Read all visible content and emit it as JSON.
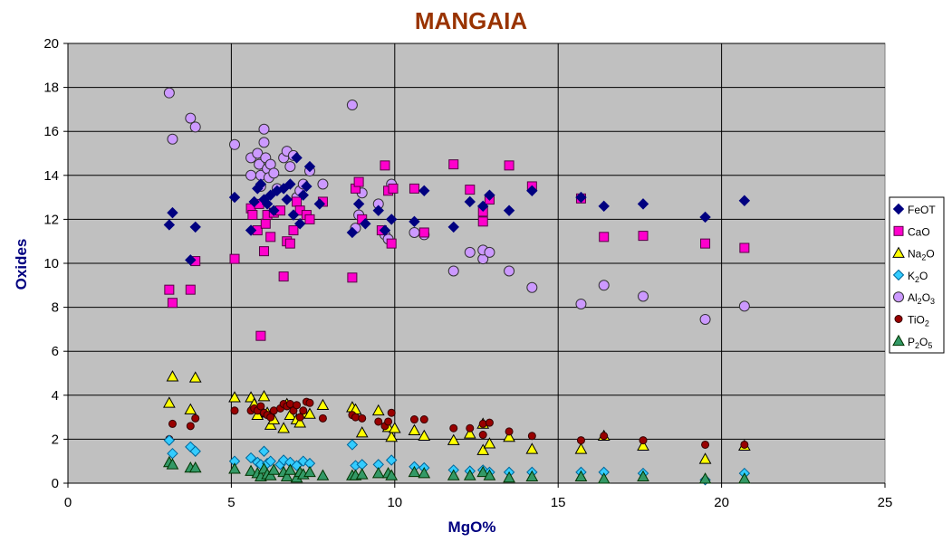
{
  "chart_data": {
    "type": "scatter",
    "title": "MANGAIA",
    "xlabel": "MgO%",
    "ylabel": "Oxides",
    "xlim": [
      0,
      25
    ],
    "ylim": [
      0,
      20
    ],
    "x_ticks": [
      "0",
      "5",
      "10",
      "15",
      "20",
      "25"
    ],
    "y_ticks": [
      "0",
      "2",
      "4",
      "6",
      "8",
      "10",
      "12",
      "14",
      "16",
      "18",
      "20"
    ],
    "grid": true,
    "legend_position": "right",
    "colors": {
      "title": "#993300",
      "axis_title": "#000080",
      "plot_background": "#c0c0c0"
    },
    "series": [
      {
        "name": "FeOT",
        "sub": "",
        "marker": "diamond",
        "fill": "#000080",
        "stroke": "#000080",
        "points": [
          [
            3.1,
            11.75
          ],
          [
            3.2,
            12.3
          ],
          [
            3.75,
            10.15
          ],
          [
            3.9,
            11.65
          ],
          [
            5.1,
            13.0
          ],
          [
            5.6,
            11.5
          ],
          [
            5.7,
            12.8
          ],
          [
            5.8,
            13.4
          ],
          [
            5.9,
            13.6
          ],
          [
            6.0,
            12.9
          ],
          [
            6.1,
            12.7
          ],
          [
            6.2,
            13.1
          ],
          [
            6.3,
            12.4
          ],
          [
            6.4,
            13.3
          ],
          [
            6.6,
            13.4
          ],
          [
            6.7,
            12.9
          ],
          [
            6.8,
            13.6
          ],
          [
            6.9,
            12.2
          ],
          [
            7.0,
            14.8
          ],
          [
            7.1,
            11.8
          ],
          [
            7.2,
            13.1
          ],
          [
            7.3,
            13.5
          ],
          [
            7.4,
            14.4
          ],
          [
            7.7,
            12.7
          ],
          [
            8.7,
            11.4
          ],
          [
            8.9,
            12.7
          ],
          [
            9.1,
            11.8
          ],
          [
            9.5,
            12.4
          ],
          [
            9.7,
            11.5
          ],
          [
            9.9,
            12.0
          ],
          [
            10.6,
            11.9
          ],
          [
            10.9,
            13.3
          ],
          [
            11.8,
            11.65
          ],
          [
            12.3,
            12.8
          ],
          [
            12.7,
            12.6
          ],
          [
            12.9,
            13.1
          ],
          [
            13.5,
            12.4
          ],
          [
            14.2,
            13.3
          ],
          [
            15.7,
            13.0
          ],
          [
            16.4,
            12.6
          ],
          [
            17.6,
            12.7
          ],
          [
            19.5,
            12.1
          ],
          [
            20.7,
            12.85
          ]
        ]
      },
      {
        "name": "CaO",
        "sub": "",
        "marker": "square",
        "fill": "#ff00cc",
        "stroke": "#550044",
        "points": [
          [
            3.1,
            8.8
          ],
          [
            3.2,
            8.2
          ],
          [
            3.75,
            8.8
          ],
          [
            3.9,
            10.1
          ],
          [
            5.1,
            10.2
          ],
          [
            5.6,
            12.5
          ],
          [
            5.65,
            12.2
          ],
          [
            5.8,
            11.5
          ],
          [
            5.85,
            12.7
          ],
          [
            5.9,
            6.7
          ],
          [
            6.0,
            10.55
          ],
          [
            6.05,
            11.8
          ],
          [
            6.1,
            12.2
          ],
          [
            6.2,
            11.2
          ],
          [
            6.3,
            12.3
          ],
          [
            6.5,
            12.4
          ],
          [
            6.6,
            9.4
          ],
          [
            6.7,
            11.0
          ],
          [
            6.8,
            10.9
          ],
          [
            6.9,
            11.5
          ],
          [
            7.0,
            12.8
          ],
          [
            7.1,
            12.4
          ],
          [
            7.3,
            12.2
          ],
          [
            7.4,
            12.0
          ],
          [
            7.8,
            12.8
          ],
          [
            8.7,
            9.35
          ],
          [
            8.8,
            13.4
          ],
          [
            8.9,
            13.7
          ],
          [
            9.0,
            12.0
          ],
          [
            9.6,
            11.5
          ],
          [
            9.7,
            14.45
          ],
          [
            9.8,
            13.3
          ],
          [
            9.95,
            13.4
          ],
          [
            9.9,
            10.9
          ],
          [
            10.6,
            13.4
          ],
          [
            10.9,
            11.4
          ],
          [
            11.8,
            14.5
          ],
          [
            12.3,
            13.35
          ],
          [
            12.7,
            12.35
          ],
          [
            12.7,
            11.9
          ],
          [
            12.9,
            12.9
          ],
          [
            13.5,
            14.45
          ],
          [
            14.2,
            13.5
          ],
          [
            15.7,
            12.95
          ],
          [
            16.4,
            11.2
          ],
          [
            17.6,
            11.25
          ],
          [
            19.5,
            10.9
          ],
          [
            20.7,
            10.7
          ]
        ]
      },
      {
        "name": "Na",
        "sub": "2",
        "tail": "O",
        "marker": "triangle",
        "fill": "#ffff00",
        "stroke": "#000000",
        "points": [
          [
            3.1,
            3.65
          ],
          [
            3.2,
            4.85
          ],
          [
            3.75,
            3.35
          ],
          [
            3.9,
            4.8
          ],
          [
            5.1,
            3.9
          ],
          [
            5.6,
            3.9
          ],
          [
            5.7,
            3.6
          ],
          [
            5.8,
            3.1
          ],
          [
            5.9,
            3.4
          ],
          [
            6.0,
            3.95
          ],
          [
            6.1,
            3.2
          ],
          [
            6.2,
            2.65
          ],
          [
            6.3,
            2.9
          ],
          [
            6.6,
            2.5
          ],
          [
            6.7,
            3.6
          ],
          [
            6.8,
            3.1
          ],
          [
            7.0,
            2.9
          ],
          [
            7.1,
            2.75
          ],
          [
            7.2,
            3.2
          ],
          [
            7.4,
            3.15
          ],
          [
            7.8,
            3.55
          ],
          [
            8.7,
            3.45
          ],
          [
            8.8,
            3.35
          ],
          [
            9.0,
            2.3
          ],
          [
            9.5,
            3.3
          ],
          [
            9.8,
            2.55
          ],
          [
            9.9,
            2.1
          ],
          [
            10.0,
            2.5
          ],
          [
            10.6,
            2.4
          ],
          [
            10.9,
            2.15
          ],
          [
            11.8,
            1.95
          ],
          [
            12.3,
            2.25
          ],
          [
            12.7,
            2.7
          ],
          [
            12.7,
            1.5
          ],
          [
            12.9,
            1.8
          ],
          [
            13.5,
            2.1
          ],
          [
            14.2,
            1.55
          ],
          [
            15.7,
            1.55
          ],
          [
            16.4,
            2.15
          ],
          [
            17.6,
            1.7
          ],
          [
            19.5,
            1.1
          ],
          [
            20.7,
            1.7
          ]
        ]
      },
      {
        "name": "K",
        "sub": "2",
        "tail": "O",
        "marker": "diamond",
        "fill": "#33ccff",
        "stroke": "#006699",
        "points": [
          [
            3.1,
            1.95
          ],
          [
            3.2,
            1.35
          ],
          [
            3.75,
            1.65
          ],
          [
            3.9,
            1.45
          ],
          [
            5.1,
            1.0
          ],
          [
            5.6,
            1.15
          ],
          [
            5.8,
            0.95
          ],
          [
            5.9,
            0.85
          ],
          [
            6.0,
            1.45
          ],
          [
            6.1,
            0.9
          ],
          [
            6.2,
            1.0
          ],
          [
            6.5,
            0.85
          ],
          [
            6.6,
            1.05
          ],
          [
            6.8,
            0.95
          ],
          [
            7.0,
            0.8
          ],
          [
            7.2,
            1.0
          ],
          [
            7.4,
            0.9
          ],
          [
            8.7,
            1.75
          ],
          [
            8.8,
            0.8
          ],
          [
            9.0,
            0.85
          ],
          [
            9.5,
            0.85
          ],
          [
            9.9,
            1.05
          ],
          [
            10.6,
            0.75
          ],
          [
            10.9,
            0.7
          ],
          [
            11.8,
            0.6
          ],
          [
            12.3,
            0.55
          ],
          [
            12.7,
            0.6
          ],
          [
            12.9,
            0.5
          ],
          [
            13.5,
            0.5
          ],
          [
            14.2,
            0.5
          ],
          [
            15.7,
            0.5
          ],
          [
            16.4,
            0.5
          ],
          [
            17.6,
            0.45
          ],
          [
            19.5,
            0.15
          ],
          [
            20.7,
            0.45
          ]
        ]
      },
      {
        "name": "Al",
        "sub": "2",
        "tail": "O",
        "sub2": "3",
        "marker": "circle",
        "fill": "#cc99ff",
        "stroke": "#333333",
        "points": [
          [
            3.1,
            17.75
          ],
          [
            3.2,
            15.65
          ],
          [
            3.75,
            16.6
          ],
          [
            3.9,
            16.2
          ],
          [
            5.1,
            15.4
          ],
          [
            5.6,
            14.8
          ],
          [
            5.6,
            14.0
          ],
          [
            5.8,
            15.0
          ],
          [
            5.85,
            14.5
          ],
          [
            5.9,
            14.0
          ],
          [
            5.9,
            13.5
          ],
          [
            6.0,
            16.1
          ],
          [
            6.0,
            15.5
          ],
          [
            6.05,
            14.8
          ],
          [
            6.1,
            14.3
          ],
          [
            6.15,
            13.9
          ],
          [
            6.2,
            14.5
          ],
          [
            6.3,
            14.1
          ],
          [
            6.4,
            13.4
          ],
          [
            6.6,
            14.8
          ],
          [
            6.7,
            15.1
          ],
          [
            6.8,
            14.4
          ],
          [
            6.9,
            14.9
          ],
          [
            7.0,
            13.0
          ],
          [
            7.1,
            13.3
          ],
          [
            7.2,
            13.6
          ],
          [
            7.4,
            14.2
          ],
          [
            7.8,
            13.6
          ],
          [
            8.7,
            17.2
          ],
          [
            8.8,
            11.6
          ],
          [
            8.9,
            12.2
          ],
          [
            9.0,
            13.2
          ],
          [
            9.5,
            12.7
          ],
          [
            9.7,
            11.3
          ],
          [
            9.8,
            11.1
          ],
          [
            9.9,
            13.6
          ],
          [
            10.6,
            11.4
          ],
          [
            10.9,
            11.3
          ],
          [
            11.8,
            9.65
          ],
          [
            12.3,
            10.5
          ],
          [
            12.7,
            10.2
          ],
          [
            12.7,
            10.6
          ],
          [
            12.9,
            10.5
          ],
          [
            13.5,
            9.65
          ],
          [
            14.2,
            8.9
          ],
          [
            15.7,
            8.15
          ],
          [
            16.4,
            9.0
          ],
          [
            17.6,
            8.5
          ],
          [
            19.5,
            7.45
          ],
          [
            20.7,
            8.05
          ]
        ]
      },
      {
        "name": "TiO",
        "sub": "2",
        "marker": "circle-small",
        "fill": "#990000",
        "stroke": "#330000",
        "points": [
          [
            3.1,
            2.0
          ],
          [
            3.2,
            2.7
          ],
          [
            3.75,
            2.6
          ],
          [
            3.9,
            2.95
          ],
          [
            5.1,
            3.3
          ],
          [
            5.6,
            3.3
          ],
          [
            5.7,
            3.4
          ],
          [
            5.8,
            3.3
          ],
          [
            5.9,
            3.5
          ],
          [
            6.0,
            3.2
          ],
          [
            6.1,
            3.1
          ],
          [
            6.2,
            3.0
          ],
          [
            6.3,
            3.3
          ],
          [
            6.5,
            3.4
          ],
          [
            6.6,
            3.6
          ],
          [
            6.7,
            3.5
          ],
          [
            6.8,
            3.6
          ],
          [
            6.9,
            3.3
          ],
          [
            7.0,
            3.55
          ],
          [
            7.1,
            3.0
          ],
          [
            7.2,
            3.3
          ],
          [
            7.3,
            3.7
          ],
          [
            7.4,
            3.65
          ],
          [
            7.8,
            2.95
          ],
          [
            8.7,
            3.1
          ],
          [
            8.8,
            3.0
          ],
          [
            9.0,
            2.95
          ],
          [
            9.5,
            2.8
          ],
          [
            9.7,
            2.6
          ],
          [
            9.8,
            2.8
          ],
          [
            9.9,
            3.2
          ],
          [
            10.6,
            2.9
          ],
          [
            10.9,
            2.9
          ],
          [
            11.8,
            2.5
          ],
          [
            12.3,
            2.5
          ],
          [
            12.7,
            2.7
          ],
          [
            12.7,
            2.2
          ],
          [
            12.9,
            2.75
          ],
          [
            13.5,
            2.35
          ],
          [
            14.2,
            2.15
          ],
          [
            15.7,
            1.95
          ],
          [
            16.4,
            2.15
          ],
          [
            17.6,
            1.95
          ],
          [
            19.5,
            1.75
          ],
          [
            20.7,
            1.75
          ]
        ]
      },
      {
        "name": "P",
        "sub": "2",
        "tail": "O",
        "sub2": "5",
        "marker": "triangle",
        "fill": "#339966",
        "stroke": "#003300",
        "points": [
          [
            3.1,
            0.95
          ],
          [
            3.2,
            0.85
          ],
          [
            3.75,
            0.7
          ],
          [
            3.9,
            0.7
          ],
          [
            5.1,
            0.65
          ],
          [
            5.6,
            0.55
          ],
          [
            5.8,
            0.45
          ],
          [
            5.9,
            0.3
          ],
          [
            6.0,
            0.65
          ],
          [
            6.1,
            0.4
          ],
          [
            6.2,
            0.35
          ],
          [
            6.3,
            0.6
          ],
          [
            6.6,
            0.5
          ],
          [
            6.7,
            0.3
          ],
          [
            6.8,
            0.6
          ],
          [
            7.0,
            0.25
          ],
          [
            7.1,
            0.5
          ],
          [
            7.2,
            0.4
          ],
          [
            7.4,
            0.5
          ],
          [
            7.8,
            0.35
          ],
          [
            8.7,
            0.35
          ],
          [
            8.8,
            0.35
          ],
          [
            9.0,
            0.4
          ],
          [
            9.5,
            0.45
          ],
          [
            9.8,
            0.45
          ],
          [
            9.9,
            0.35
          ],
          [
            10.6,
            0.5
          ],
          [
            10.9,
            0.45
          ],
          [
            11.8,
            0.35
          ],
          [
            12.3,
            0.35
          ],
          [
            12.7,
            0.5
          ],
          [
            12.9,
            0.35
          ],
          [
            13.5,
            0.25
          ],
          [
            14.2,
            0.3
          ],
          [
            15.7,
            0.3
          ],
          [
            16.4,
            0.2
          ],
          [
            17.6,
            0.3
          ],
          [
            19.5,
            0.2
          ],
          [
            20.7,
            0.2
          ]
        ]
      }
    ]
  }
}
